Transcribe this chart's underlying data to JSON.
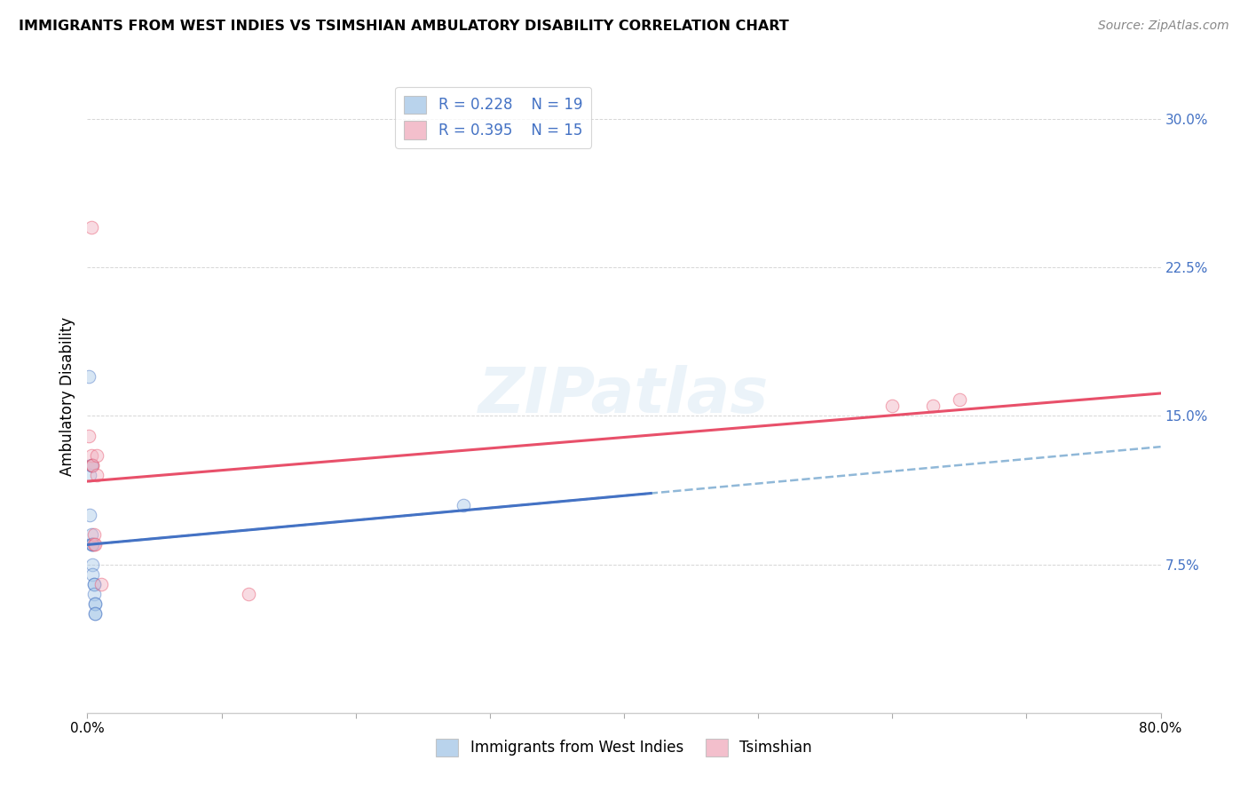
{
  "title": "IMMIGRANTS FROM WEST INDIES VS TSIMSHIAN AMBULATORY DISABILITY CORRELATION CHART",
  "source": "Source: ZipAtlas.com",
  "ylabel": "Ambulatory Disability",
  "yticks": [
    0.0,
    0.075,
    0.15,
    0.225,
    0.3
  ],
  "ytick_labels": [
    "",
    "7.5%",
    "15.0%",
    "22.5%",
    "30.0%"
  ],
  "legend_r1": "0.228",
  "legend_n1": "19",
  "legend_r2": "0.395",
  "legend_n2": "15",
  "legend_label1": "Immigrants from West Indies",
  "legend_label2": "Tsimshian",
  "blue_color": "#a8c8e8",
  "pink_color": "#f0b0c0",
  "blue_line_color": "#4472c4",
  "pink_line_color": "#e8506a",
  "dashed_line_color": "#90b8d8",
  "watermark_text": "ZIPatlas",
  "blue_points_x": [
    0.001,
    0.002,
    0.002,
    0.003,
    0.003,
    0.003,
    0.003,
    0.004,
    0.004,
    0.004,
    0.004,
    0.005,
    0.005,
    0.005,
    0.006,
    0.006,
    0.006,
    0.006,
    0.28
  ],
  "blue_points_y": [
    0.17,
    0.12,
    0.1,
    0.125,
    0.125,
    0.09,
    0.085,
    0.085,
    0.085,
    0.075,
    0.07,
    0.065,
    0.065,
    0.06,
    0.055,
    0.055,
    0.05,
    0.05,
    0.105
  ],
  "pink_points_x": [
    0.001,
    0.003,
    0.003,
    0.004,
    0.004,
    0.005,
    0.005,
    0.006,
    0.007,
    0.007,
    0.01,
    0.12,
    0.6,
    0.63,
    0.65
  ],
  "pink_points_y": [
    0.14,
    0.245,
    0.13,
    0.125,
    0.125,
    0.085,
    0.09,
    0.085,
    0.13,
    0.12,
    0.065,
    0.06,
    0.155,
    0.155,
    0.158
  ],
  "xmin": 0.0,
  "xmax": 0.8,
  "ymin": 0.0,
  "ymax": 0.32,
  "marker_size": 110,
  "alpha": 0.45,
  "blue_line_end_x": 0.42,
  "xtick_positions": [
    0.0,
    0.1,
    0.2,
    0.3,
    0.4,
    0.5,
    0.6,
    0.7,
    0.8
  ]
}
